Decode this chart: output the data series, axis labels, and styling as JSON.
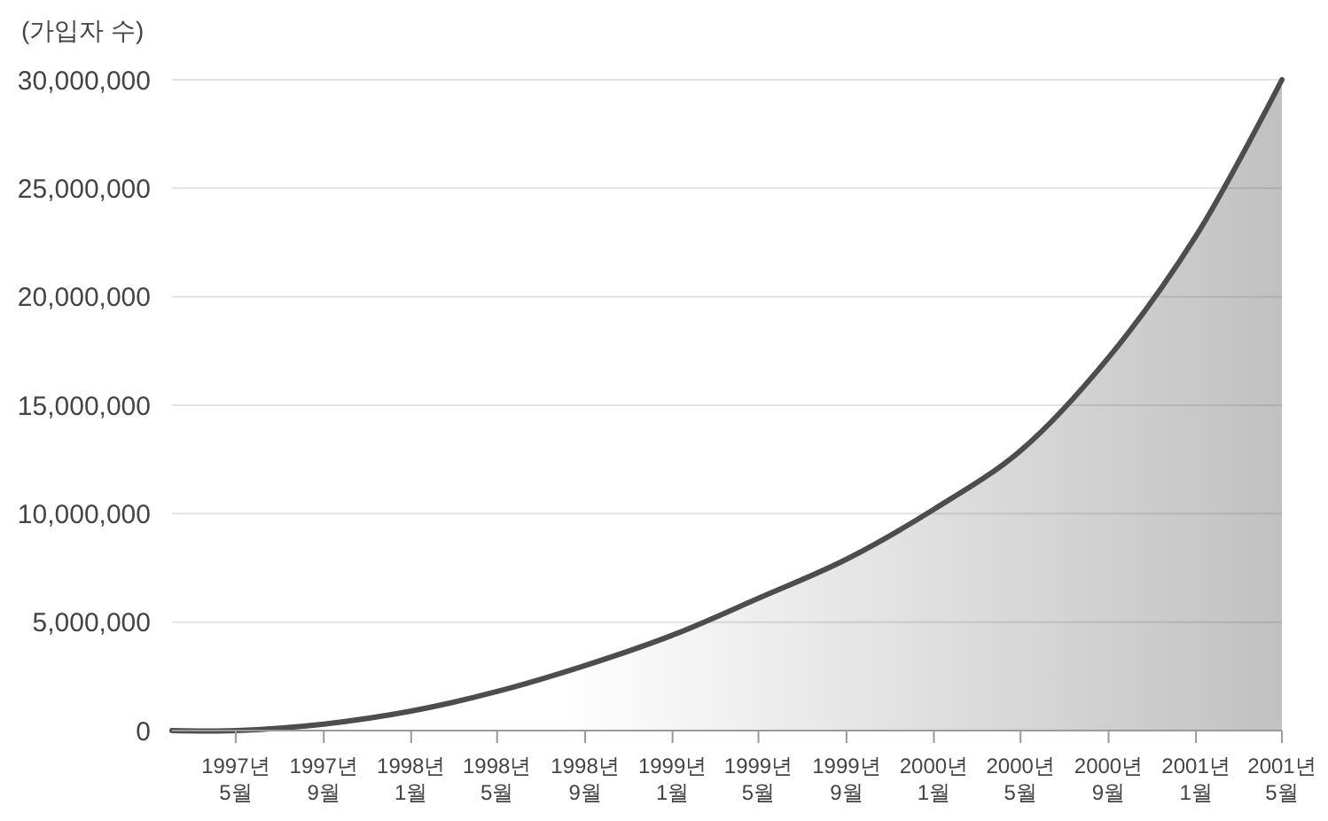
{
  "chart_data": {
    "type": "area",
    "ylabel": "(가입자 수)",
    "x": [
      "1997-02",
      "1997-05",
      "1997-09",
      "1998-01",
      "1998-05",
      "1998-09",
      "1999-01",
      "1999-05",
      "1999-09",
      "2000-01",
      "2000-05",
      "2000-09",
      "2001-01",
      "2001-05"
    ],
    "series": [
      {
        "color": "#4d4d4f",
        "values": [
          0,
          0,
          300000,
          900000,
          1800000,
          3000000,
          4400000,
          6100000,
          7900000,
          10200000,
          12900000,
          17200000,
          22800000,
          30000000
        ]
      }
    ],
    "xlim": [
      "1997-02",
      "2001-05"
    ],
    "xticks": [
      {
        "value": "1997-05",
        "label": "1997년 5월"
      },
      {
        "value": "1997-09",
        "label": "1997년 9월"
      },
      {
        "value": "1998-01",
        "label": "1998년 1월"
      },
      {
        "value": "1998-05",
        "label": "1998년 5월"
      },
      {
        "value": "1998-09",
        "label": "1998년 9월"
      },
      {
        "value": "1999-01",
        "label": "1999년 1월"
      },
      {
        "value": "1999-05",
        "label": "1999년 5월"
      },
      {
        "value": "1999-09",
        "label": "1999년 9월"
      },
      {
        "value": "2000-01",
        "label": "2000년 1월"
      },
      {
        "value": "2000-05",
        "label": "2000년 5월"
      },
      {
        "value": "2000-09",
        "label": "2000년 9월"
      },
      {
        "value": "2001-01",
        "label": "2001년 1월"
      },
      {
        "value": "2001-05",
        "label": "2001년 5월"
      }
    ],
    "ylim": [
      0,
      30000000
    ],
    "yticks": [
      {
        "value": 0,
        "label": "0"
      },
      {
        "value": 5000000,
        "label": "5,000,000"
      },
      {
        "value": 10000000,
        "label": "10,000,000"
      },
      {
        "value": 15000000,
        "label": "15,000,000"
      },
      {
        "value": 20000000,
        "label": "20,000,000"
      },
      {
        "value": 25000000,
        "label": "25,000,000"
      },
      {
        "value": 30000000,
        "label": "30,000,000"
      }
    ],
    "grid": "y"
  }
}
